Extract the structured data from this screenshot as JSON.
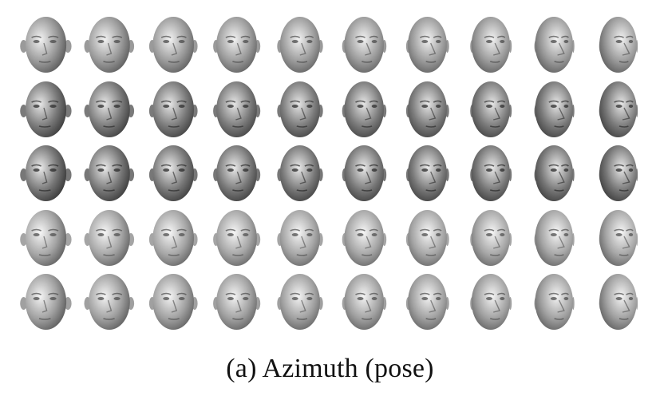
{
  "figure": {
    "caption": "(a) Azimuth (pose)",
    "rows": 5,
    "columns": 10,
    "row_names": [
      "row-1",
      "row-2",
      "row-3",
      "row-4",
      "row-5"
    ],
    "content": "rendered 3D face images varying in azimuth (head rotation) across columns"
  }
}
